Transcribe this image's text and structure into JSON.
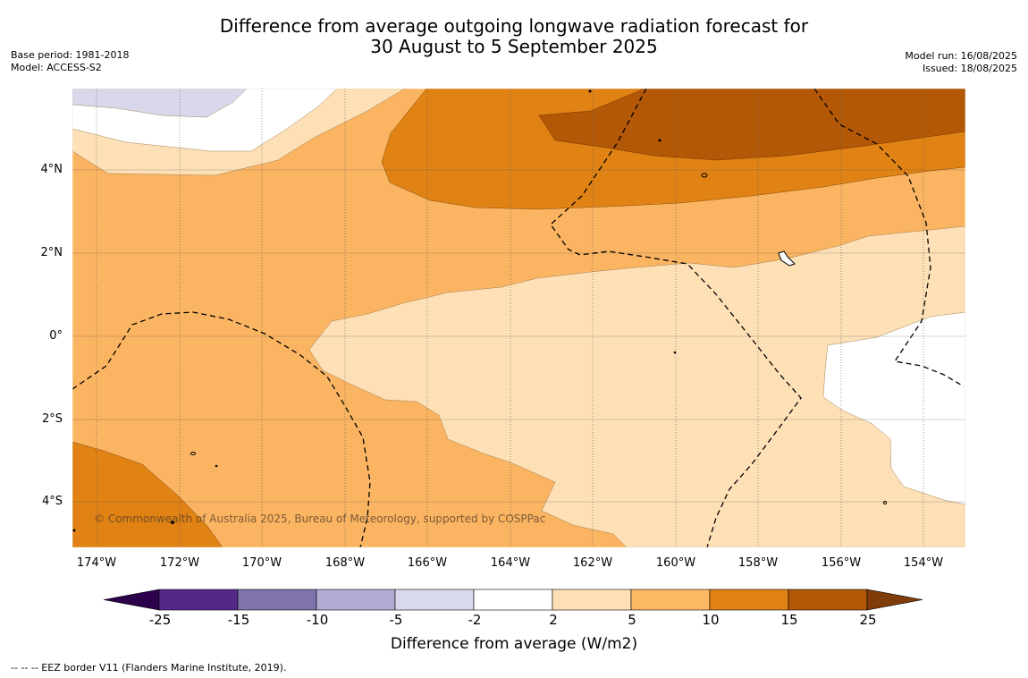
{
  "header": {
    "title_line1": "Difference from average outgoing longwave radiation forecast for",
    "title_line2": "30 August to 5 September 2025",
    "base_period": "Base period: 1981-2018",
    "model": "Model: ACCESS-S2",
    "model_run": "Model run: 16/08/2025",
    "issued": "Issued: 18/08/2025"
  },
  "map": {
    "lat_labels": [
      "4°N",
      "2°N",
      "0°",
      "2°S",
      "4°S"
    ],
    "lon_labels": [
      "174°W",
      "172°W",
      "170°W",
      "168°W",
      "166°W",
      "164°W",
      "162°W",
      "160°W",
      "158°W",
      "156°W",
      "154°W"
    ],
    "credit": "© Commonwealth of Australia 2025, Bureau of Meteorology, supported by COSPPac",
    "colors": {
      "c_-5_-2": "#d8d8ea",
      "c_-2_2": "#ffffff",
      "c_2_5": "#fde0b6",
      "c_5_10": "#fbb562",
      "c_10_15": "#e08214",
      "c_15_25": "#b35806"
    }
  },
  "colorbar": {
    "ticks": [
      "-25",
      "-15",
      "-10",
      "-5",
      "-2",
      "2",
      "5",
      "10",
      "15",
      "25"
    ],
    "colors": [
      "#542788",
      "#8073ac",
      "#b2abd2",
      "#d8daeb",
      "#ffffff",
      "#fee0b6",
      "#fdb863",
      "#e08214",
      "#b35806"
    ],
    "under_color": "#2d004b",
    "over_color": "#7f3b08",
    "label": "Difference from average (W/m2)"
  },
  "footer": {
    "legend": "--  --  -- EEZ border V11 (Flanders Marine Institute, 2019)."
  }
}
